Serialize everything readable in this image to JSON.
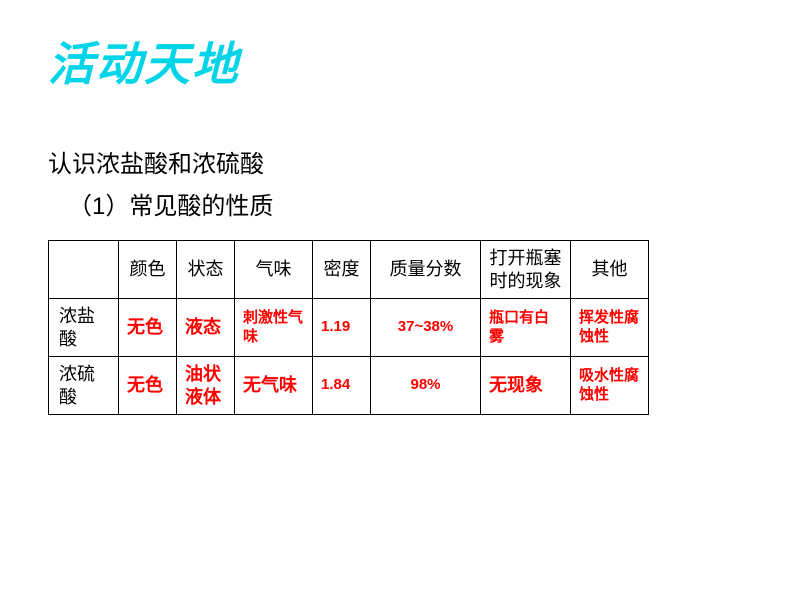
{
  "title": "活动天地",
  "subtitle1": "认识浓盐酸和浓硫酸",
  "subtitle2": "（1）常见酸的性质",
  "colors": {
    "title_color": "#00d4e8",
    "data_color": "#ff0000",
    "text_color": "#000000",
    "border_color": "#000000",
    "background_color": "#ffffff"
  },
  "table": {
    "columns": [
      "",
      "颜色",
      "状态",
      "气味",
      "密度",
      "质量分数",
      "打开瓶塞时的现象",
      "其他"
    ],
    "rows": [
      {
        "label": "浓盐酸",
        "color": "无色",
        "state": "液态",
        "smell": "刺激性气味",
        "density": "1.19",
        "mass": "37~38%",
        "open": "瓶口有白雾",
        "other": "挥发性腐蚀性"
      },
      {
        "label": "浓硫酸",
        "color": "无色",
        "state": "油状液体",
        "smell": "无气味",
        "density": "1.84",
        "mass": "98%",
        "open": "无现象",
        "other": "吸水性腐蚀性"
      }
    ]
  }
}
